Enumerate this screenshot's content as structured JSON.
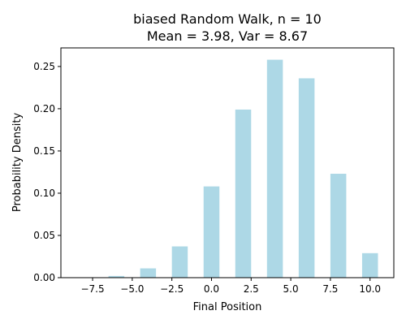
{
  "chart_data": {
    "type": "bar",
    "title_line1": "biased Random Walk, n = 10",
    "title_line2": "Mean = 3.98, Var = 8.67",
    "xlabel": "Final Position",
    "ylabel": "Probability Density",
    "xlim": [
      -9.5,
      11.5
    ],
    "ylim": [
      0,
      0.272
    ],
    "bar_width": 1.0,
    "bar_color": "#add8e6",
    "x": [
      -10,
      -8,
      -6,
      -4,
      -2,
      0,
      2,
      4,
      6,
      8,
      10
    ],
    "values": [
      0.0,
      0.0,
      0.002,
      0.011,
      0.037,
      0.108,
      0.199,
      0.258,
      0.236,
      0.123,
      0.029
    ],
    "xticks": [
      -7.5,
      -5.0,
      -2.5,
      0.0,
      2.5,
      5.0,
      7.5,
      10.0
    ],
    "xtick_labels": [
      "−7.5",
      "−5.0",
      "−2.5",
      "0.0",
      "2.5",
      "5.0",
      "7.5",
      "10.0"
    ],
    "yticks": [
      0.0,
      0.05,
      0.1,
      0.15,
      0.2,
      0.25
    ],
    "ytick_labels": [
      "0.00",
      "0.05",
      "0.10",
      "0.15",
      "0.20",
      "0.25"
    ],
    "grid": false,
    "legend": null
  }
}
